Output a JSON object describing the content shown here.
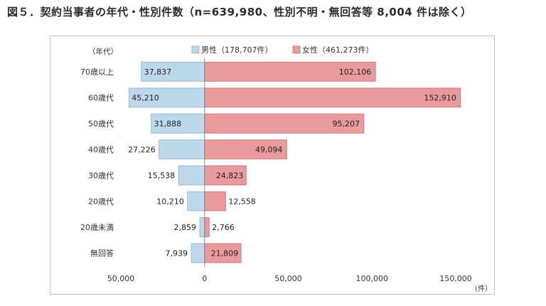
{
  "title": "図５．契約当事者の年代・性別件数（n=639,980、性別不明・無回答等 8,004 件は除く）",
  "chart_data": {
    "type": "bar",
    "orientation": "horizontal",
    "layout": "population-pyramid",
    "title": "",
    "y_axis_unit": "（年代）",
    "x_axis_unit": "（件）",
    "categories": [
      "70歳以上",
      "60歳代",
      "50歳代",
      "40歳代",
      "30歳代",
      "20歳代",
      "20歳未満",
      "無回答"
    ],
    "series": [
      {
        "name": "男性（178,707件）",
        "color": "#bcd8ea",
        "stroke": "#8fb3cc",
        "side": "left",
        "values": [
          37837,
          45210,
          31888,
          27226,
          15538,
          10210,
          2859,
          7939
        ],
        "labels": [
          "37,837",
          "45,210",
          "31,888",
          "27,226",
          "15,538",
          "10,210",
          "2,859",
          "7,939"
        ]
      },
      {
        "name": "女性（461,273件）",
        "color": "#e89a9d",
        "stroke": "#c96f73",
        "side": "right",
        "values": [
          102106,
          152910,
          95207,
          49094,
          24823,
          12558,
          2766,
          21809
        ],
        "labels": [
          "102,106",
          "152,910",
          "95,207",
          "49,094",
          "24,823",
          "12,558",
          "2,766",
          "21,809"
        ]
      }
    ],
    "xlim": [
      -50000,
      150000
    ],
    "x_ticks": [
      {
        "value": -50000,
        "label": "50,000"
      },
      {
        "value": 0,
        "label": "0"
      },
      {
        "value": 50000,
        "label": "50,000"
      },
      {
        "value": 100000,
        "label": "100,000"
      },
      {
        "value": 150000,
        "label": "150,000"
      }
    ],
    "grid": false,
    "legend_position": "top-center"
  }
}
